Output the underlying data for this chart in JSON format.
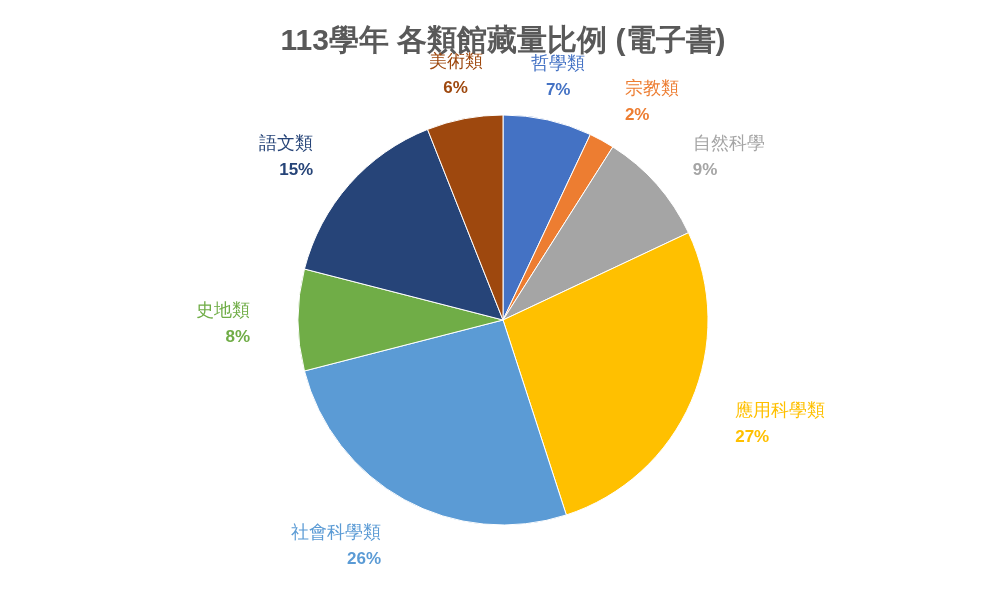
{
  "chart_data": {
    "type": "pie",
    "title": "113學年  各類館藏量比例 (電子書)",
    "categories": [
      "哲學類",
      "宗教類",
      "自然科學",
      "應用科學類",
      "社會科學類",
      "史地類",
      "語文類",
      "美術類"
    ],
    "values": [
      7,
      2,
      9,
      27,
      26,
      8,
      15,
      6
    ],
    "value_labels": [
      "7%",
      "2%",
      "9%",
      "27%",
      "26%",
      "8%",
      "15%",
      "6%"
    ],
    "colors": [
      "#4472c4",
      "#ed7d31",
      "#a5a5a5",
      "#ffc000",
      "#5b9bd5",
      "#70ad47",
      "#264478",
      "#9e480e"
    ]
  }
}
